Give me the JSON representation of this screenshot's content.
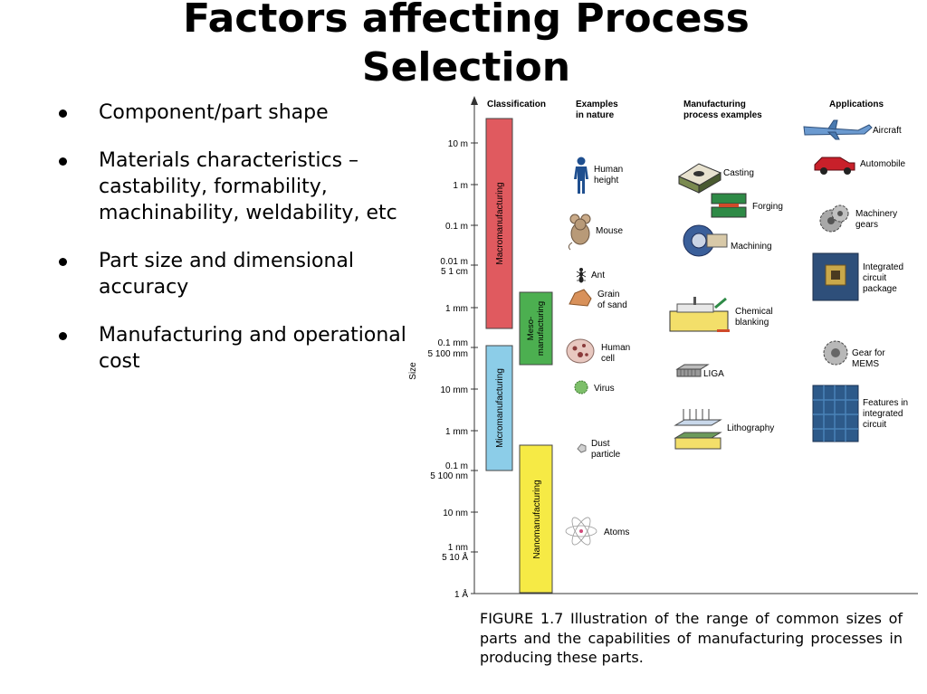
{
  "slide": {
    "title_line1": "Factors affecting Process",
    "title_line2": "Selection",
    "bullets": [
      "Component/part shape",
      "Materials characteristics – castability, formability, machinability, weldability, etc",
      "Part size and dimensional accuracy",
      "Manufacturing and operational cost"
    ]
  },
  "figure": {
    "headers": {
      "classification": "Classification",
      "nature_l1": "Examples",
      "nature_l2": "in nature",
      "process_l1": "Manufacturing",
      "process_l2": "process examples",
      "applications": "Applications"
    },
    "axis_label": "Size",
    "ticks": [
      "10 m",
      "1 m",
      "0.1 m",
      "0.01 m",
      "5 1 cm",
      "1 mm",
      "0.1 mm",
      "5 100 mm",
      "10 mm",
      "1 mm",
      "0.1 m",
      "5 100 nm",
      "10 nm",
      "1 nm",
      "5 10 Å",
      "1 Å"
    ],
    "bars": {
      "macro": "Macromanufacturing",
      "meso_l1": "Meso-",
      "meso_l2": "manufacturing",
      "micro": "Micromanufacturing",
      "nano": "Nanomanufacturing"
    },
    "nature": {
      "human_l1": "Human",
      "human_l2": "height",
      "mouse": "Mouse",
      "ant": "Ant",
      "sand_l1": "Grain",
      "sand_l2": "of sand",
      "cell_l1": "Human",
      "cell_l2": "cell",
      "virus": "Virus",
      "dust_l1": "Dust",
      "dust_l2": "particle",
      "atoms": "Atoms"
    },
    "processes": {
      "casting": "Casting",
      "forging": "Forging",
      "machining": "Machining",
      "chem_l1": "Chemical",
      "chem_l2": "blanking",
      "liga": "LIGA",
      "litho": "Lithography"
    },
    "applications": {
      "aircraft": "Aircraft",
      "automobile": "Automobile",
      "gears_l1": "Machinery",
      "gears_l2": "gears",
      "ic_l1": "Integrated",
      "ic_l2": "circuit",
      "ic_l3": "package",
      "mems_l1": "Gear for",
      "mems_l2": "MEMS",
      "feat_l1": "Features in",
      "feat_l2": "integrated",
      "feat_l3": "circuit"
    },
    "colors": {
      "macro": "#e05a5f",
      "meso": "#4caf50",
      "micro": "#8ccde8",
      "nano": "#f6ea45"
    }
  },
  "caption": "FIGURE 1.7 Illustration of the range of common sizes of parts and the capabilities of manufacturing processes in producing these parts."
}
